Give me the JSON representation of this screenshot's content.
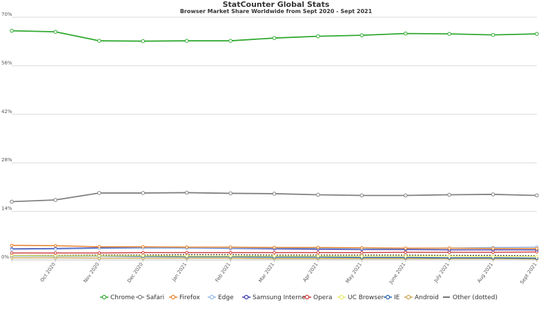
{
  "chart_data": {
    "type": "line",
    "title": "StatCounter Global Stats",
    "subtitle": "Browser Market Share Worldwide from Sept 2020 - Sept 2021",
    "xlabel": "",
    "ylabel": "",
    "ylim": [
      0,
      70
    ],
    "y_ticks": [
      "0%",
      "14%",
      "28%",
      "42%",
      "56%",
      "70%"
    ],
    "y_tick_values": [
      0,
      14,
      28,
      42,
      56,
      70
    ],
    "categories": [
      "Sept 2020",
      "Oct 2020",
      "Nov 2020",
      "Dec 2020",
      "Jan 2021",
      "Feb 2021",
      "Mar 2021",
      "Apr 2021",
      "May 2021",
      "June 2021",
      "July 2021",
      "Aug 2021",
      "Sept 2021"
    ],
    "x_tick_labels": [
      "",
      "Oct 2020",
      "Nov 2020",
      "Dec 2020",
      "Jan 2021",
      "Feb 2021",
      "Mar 2021",
      "Apr 2021",
      "May 2021",
      "June 2021",
      "July 2021",
      "Aug 2021",
      "Sept 2021"
    ],
    "grid": true,
    "legend_position": "bottom",
    "series": [
      {
        "name": "Chrome",
        "color": "#2fa82f",
        "values": [
          66.1,
          65.8,
          63.2,
          63.1,
          63.2,
          63.2,
          64.0,
          64.5,
          64.8,
          65.3,
          65.2,
          64.9,
          65.2
        ]
      },
      {
        "name": "Safari",
        "color": "#808080",
        "values": [
          16.8,
          17.3,
          19.3,
          19.3,
          19.4,
          19.2,
          19.1,
          18.8,
          18.6,
          18.6,
          18.8,
          18.9,
          18.6
        ]
      },
      {
        "name": "Firefox",
        "color": "#e67e22",
        "values": [
          4.2,
          4.1,
          3.8,
          3.8,
          3.7,
          3.7,
          3.6,
          3.6,
          3.5,
          3.4,
          3.4,
          3.3,
          3.3
        ]
      },
      {
        "name": "Edge",
        "color": "#8fb6e8",
        "values": [
          3.0,
          3.1,
          3.3,
          3.4,
          3.4,
          3.4,
          3.4,
          3.4,
          3.2,
          3.3,
          3.4,
          3.6,
          3.7
        ]
      },
      {
        "name": "Samsung Internet",
        "color": "#3333aa",
        "values": [
          3.2,
          3.3,
          3.5,
          3.5,
          3.4,
          3.3,
          3.2,
          3.1,
          3.0,
          3.0,
          2.9,
          2.9,
          2.9
        ]
      },
      {
        "name": "Opera",
        "color": "#cc3333",
        "values": [
          2.0,
          2.0,
          2.0,
          2.1,
          2.1,
          2.1,
          2.1,
          2.1,
          2.1,
          2.2,
          2.2,
          2.2,
          2.3
        ]
      },
      {
        "name": "UC Browser",
        "color": "#e8e86a",
        "values": [
          1.3,
          1.2,
          1.2,
          1.2,
          1.1,
          1.1,
          1.1,
          1.1,
          1.1,
          1.1,
          1.1,
          1.0,
          1.0
        ]
      },
      {
        "name": "IE",
        "color": "#1f5fa8",
        "values": [
          1.2,
          1.1,
          1.1,
          1.0,
          0.9,
          0.9,
          0.8,
          0.8,
          0.7,
          0.7,
          0.6,
          0.6,
          0.5
        ]
      },
      {
        "name": "Android",
        "color": "#c8a24a",
        "values": [
          0.6,
          0.6,
          0.5,
          0.5,
          0.5,
          0.5,
          0.4,
          0.4,
          0.4,
          0.4,
          0.4,
          0.4,
          0.3
        ]
      },
      {
        "name": "Other (dotted)",
        "color": "#444444",
        "values": [
          1.3,
          1.3,
          1.4,
          1.4,
          1.5,
          1.5,
          1.4,
          1.4,
          1.4,
          1.4,
          1.3,
          1.3,
          1.2
        ]
      }
    ]
  }
}
